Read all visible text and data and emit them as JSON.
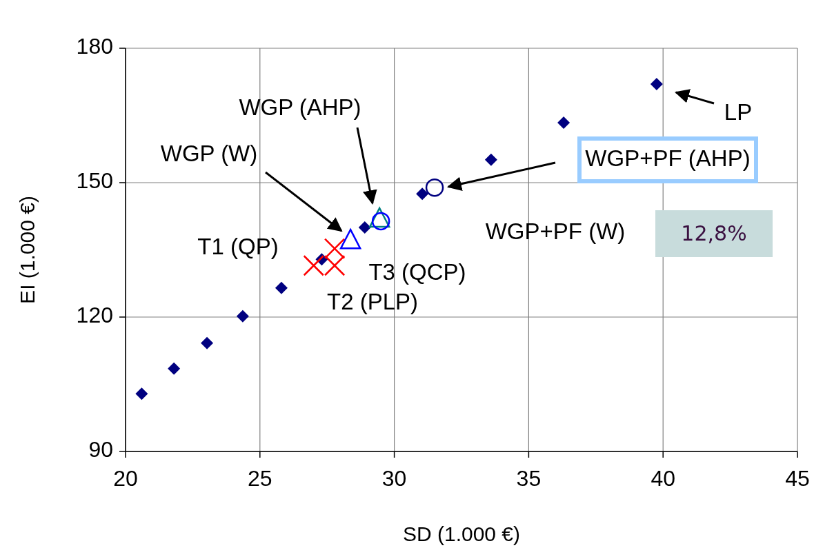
{
  "chart_data": {
    "type": "scatter",
    "xlabel": "SD (1.000 €)",
    "ylabel": "EI (1.000 €)",
    "xlim": [
      20,
      45
    ],
    "xticks": [
      20,
      25,
      30,
      35,
      40,
      45
    ],
    "ylim": [
      90,
      180
    ],
    "yticks": [
      90,
      120,
      150,
      180
    ],
    "grid": true,
    "series": [
      {
        "color": "#000080",
        "marker": "diamond",
        "x": [
          20.6,
          21.8,
          23.03,
          24.36,
          25.8,
          27.3,
          28.9,
          31.04,
          33.6,
          36.3,
          39.76
        ],
        "values": [
          102.9,
          108.5,
          114.2,
          120.2,
          126.5,
          132.9,
          140,
          147.5,
          155.1,
          163.4,
          172
        ]
      },
      {
        "color": "#ff0000",
        "marker": "cross",
        "x": [
          27.0,
          27.78,
          27.78
        ],
        "values": [
          131.5,
          131.5,
          135.3
        ]
      },
      {
        "color": "#0000ff",
        "marker": "triangle",
        "x": [
          28.37
        ],
        "values": [
          137.2
        ]
      },
      {
        "color": "#008080",
        "marker": "triangle",
        "x": [
          29.45
        ],
        "values": [
          142.0
        ]
      },
      {
        "color": "#0000ff",
        "marker": "circle",
        "x": [
          29.5
        ],
        "values": [
          141.4
        ]
      },
      {
        "color": "#000080",
        "marker": "circle",
        "x": [
          31.5
        ],
        "values": [
          148.9
        ]
      }
    ],
    "annotations": [
      "LP",
      "WGP+PF (AHP)",
      "WGP (AHP)",
      "WGP (W)",
      "T1 (QP)",
      "T2 (PLP)",
      "T3 (QCP)",
      "WGP+PF (W)",
      "12,8%"
    ]
  }
}
